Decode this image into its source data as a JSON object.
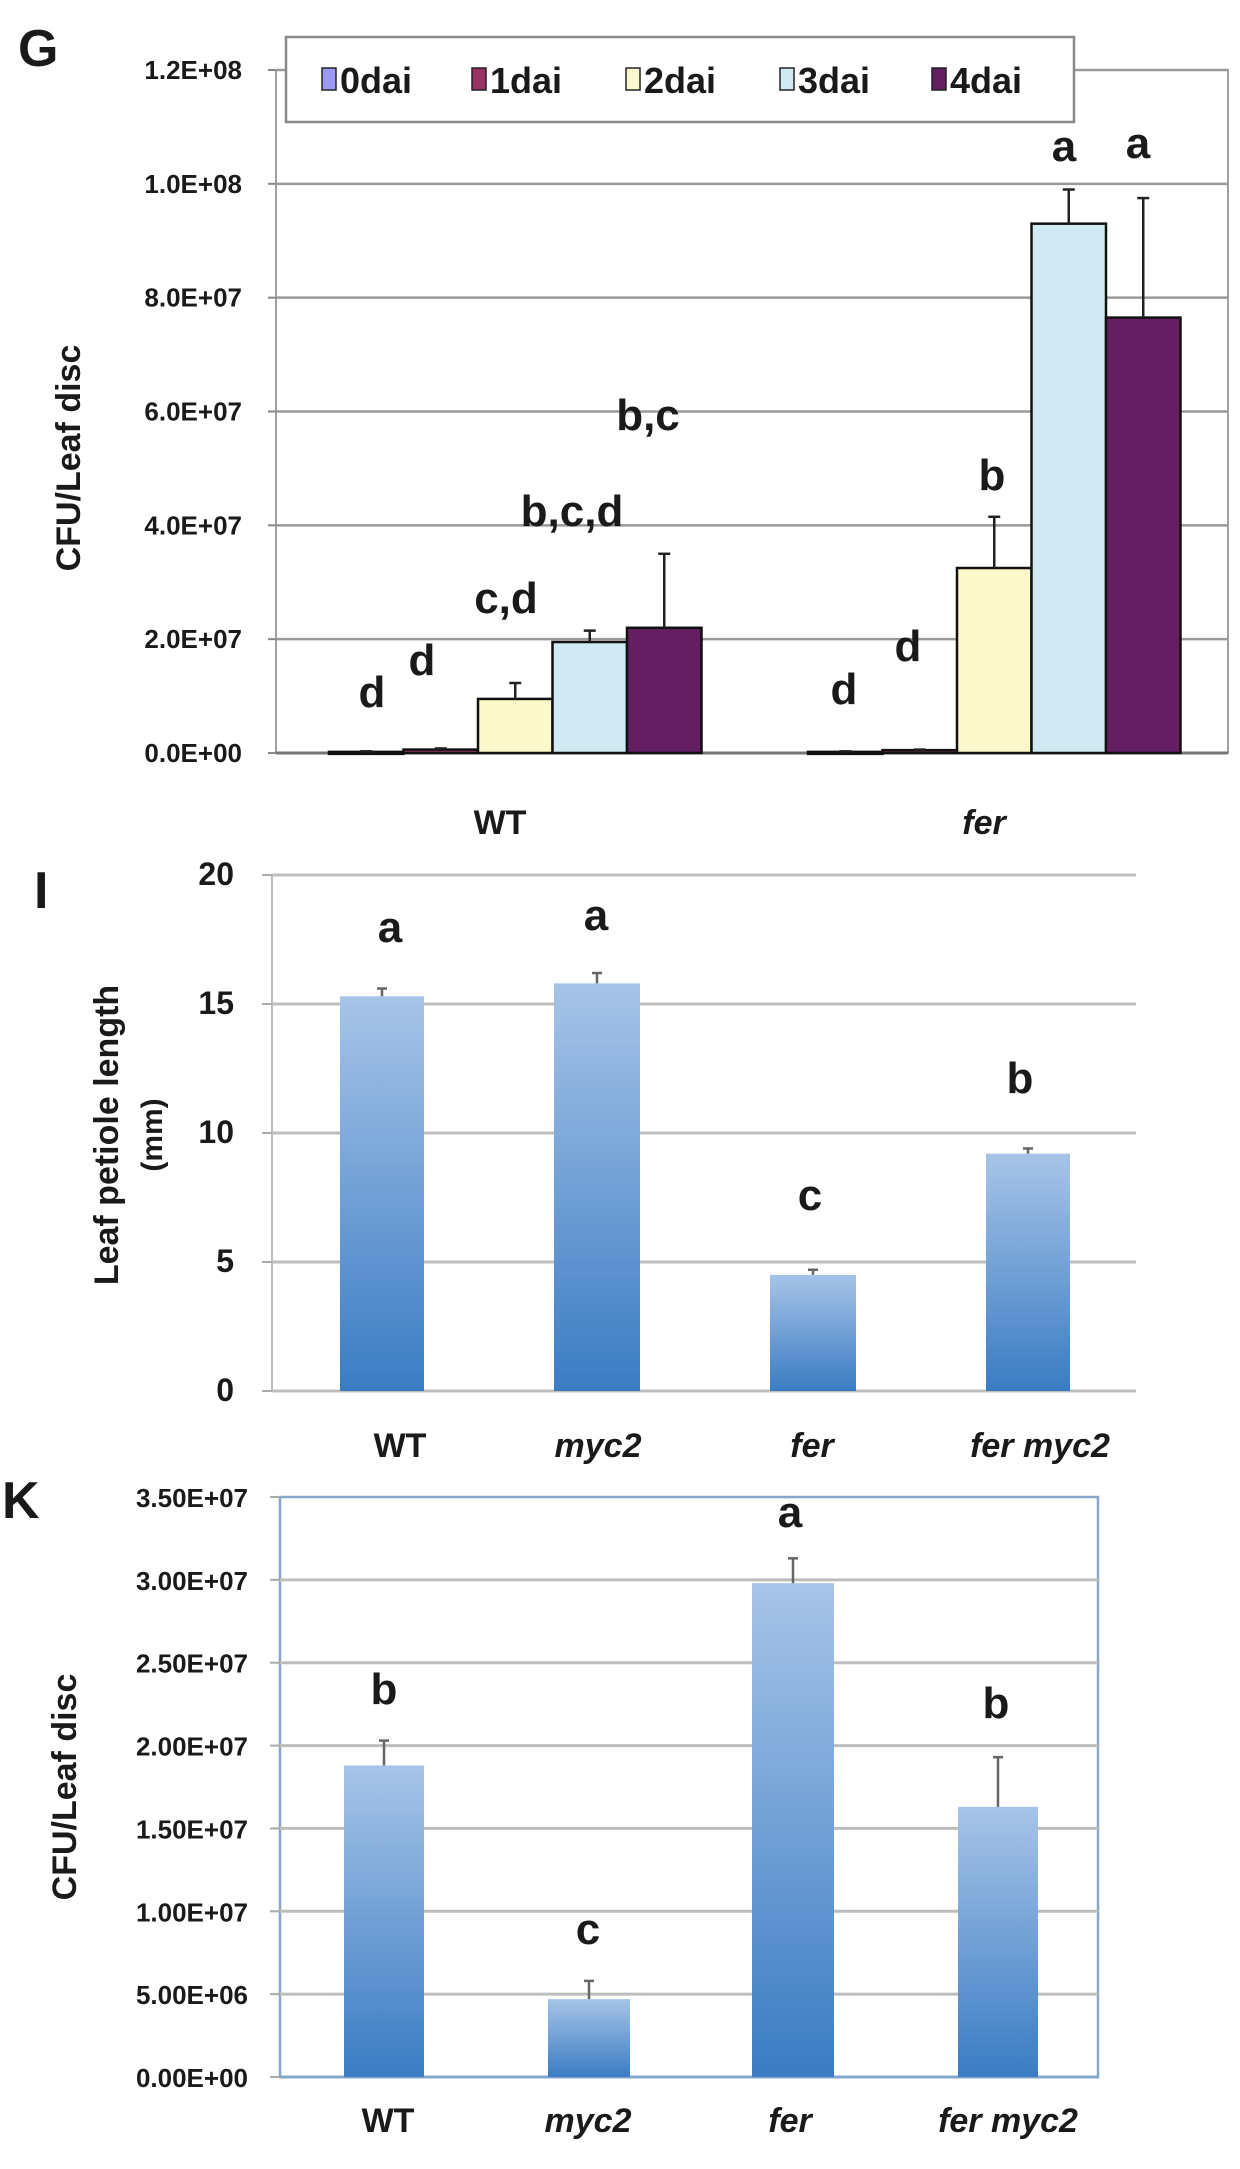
{
  "chart_data": [
    {
      "panel": "G",
      "type": "bar",
      "ylabel": "CFU/Leaf disc",
      "ylim": [
        0,
        120000000
      ],
      "yticks": [
        "0.0E+00",
        "2.0E+07",
        "4.0E+07",
        "6.0E+07",
        "8.0E+07",
        "1.0E+08",
        "1.2E+08"
      ],
      "categories": [
        "WT",
        "fer"
      ],
      "legend_position": "top",
      "grid": true,
      "series": [
        {
          "name": "0dai",
          "color": "#9a9af0",
          "values": [
            200000,
            200000
          ],
          "error_upper": [
            300000,
            300000
          ],
          "letters": [
            "d",
            "d"
          ]
        },
        {
          "name": "1dai",
          "color": "#993366",
          "values": [
            600000,
            500000
          ],
          "error_upper": [
            800000,
            600000
          ],
          "letters": [
            "d",
            "d"
          ]
        },
        {
          "name": "2dai",
          "color": "#fbf8cc",
          "values": [
            9500000,
            32500000
          ],
          "error_upper": [
            12300000,
            41500000
          ],
          "letters": [
            "c,d",
            "b"
          ]
        },
        {
          "name": "3dai",
          "color": "#cfeaf3",
          "values": [
            19500000,
            93000000
          ],
          "error_upper": [
            21500000,
            99000000
          ],
          "letters": [
            "b,c,d",
            "a"
          ]
        },
        {
          "name": "4dai",
          "color": "#641f62",
          "values": [
            22000000,
            76500000
          ],
          "error_upper": [
            35000000,
            97500000
          ],
          "letters": [
            "b,c",
            "a"
          ]
        }
      ]
    },
    {
      "panel": "I",
      "type": "bar",
      "ylabel": "Leaf petiole length",
      "ylabel2": "(mm)",
      "ylim": [
        0,
        20
      ],
      "yticks": [
        "0",
        "5",
        "10",
        "15",
        "20"
      ],
      "grid": true,
      "categories": [
        "WT",
        "myc2",
        "fer",
        "fer myc2"
      ],
      "italic": [
        false,
        true,
        true,
        true
      ],
      "values": [
        15.3,
        15.8,
        4.5,
        9.2
      ],
      "error_upper": [
        15.6,
        16.2,
        4.7,
        9.4
      ],
      "letters": [
        "a",
        "a",
        "c",
        "b"
      ]
    },
    {
      "panel": "K",
      "type": "bar",
      "ylabel": "CFU/Leaf disc",
      "ylim": [
        0,
        35000000
      ],
      "yticks": [
        "0.00E+00",
        "5.00E+06",
        "1.00E+07",
        "1.50E+07",
        "2.00E+07",
        "2.50E+07",
        "3.00E+07",
        "3.50E+07"
      ],
      "grid": true,
      "categories": [
        "WT",
        "myc2",
        "fer",
        "fer myc2"
      ],
      "italic": [
        false,
        true,
        true,
        true
      ],
      "values": [
        18800000,
        4700000,
        29800000,
        16300000
      ],
      "error_upper": [
        20300000,
        5800000,
        31300000,
        19300000
      ],
      "letters": [
        "b",
        "c",
        "a",
        "b"
      ]
    }
  ],
  "colors": {
    "bar_top": "#a7c4e8",
    "bar_bottom": "#3a7cc3",
    "grid": "#bdbdbd",
    "k_frame": "#86a6cc"
  }
}
